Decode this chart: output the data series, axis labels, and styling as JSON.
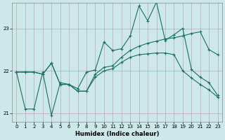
{
  "xlabel": "Humidex (Indice chaleur)",
  "bg_color": "#cce8e8",
  "line_color": "#1a7060",
  "grid_color": "#b8a8b8",
  "xlim": [
    -0.5,
    23.5
  ],
  "ylim": [
    20.8,
    23.6
  ],
  "yticks": [
    21,
    22,
    23
  ],
  "xticks": [
    0,
    1,
    2,
    3,
    4,
    5,
    6,
    7,
    8,
    9,
    10,
    11,
    12,
    13,
    14,
    15,
    16,
    17,
    18,
    19,
    20,
    21,
    22,
    23
  ],
  "line_spiky_x": [
    0,
    1,
    2,
    3,
    4,
    5,
    6,
    7,
    8,
    9,
    10,
    11,
    12,
    13,
    14,
    15,
    16,
    17,
    18,
    19,
    20,
    21,
    22,
    23
  ],
  "line_spiky_y": [
    21.97,
    21.1,
    21.1,
    21.97,
    20.95,
    21.72,
    21.68,
    21.58,
    21.97,
    22.02,
    22.68,
    22.48,
    22.52,
    22.82,
    23.53,
    23.18,
    23.62,
    22.72,
    22.85,
    23.0,
    22.03,
    21.85,
    21.72,
    21.42
  ],
  "line_rising_x": [
    0,
    1,
    2,
    3,
    4,
    5,
    6,
    7,
    8,
    9,
    10,
    11,
    12,
    13,
    14,
    15,
    16,
    17,
    18,
    19,
    20,
    21,
    22,
    23
  ],
  "line_rising_y": [
    21.97,
    21.97,
    21.97,
    21.92,
    22.18,
    21.68,
    21.68,
    21.52,
    21.52,
    21.92,
    22.08,
    22.12,
    22.32,
    22.48,
    22.58,
    22.65,
    22.7,
    22.75,
    22.78,
    22.82,
    22.88,
    22.92,
    22.5,
    22.38
  ],
  "line_falling_x": [
    0,
    1,
    2,
    3,
    4,
    5,
    6,
    7,
    8,
    9,
    10,
    11,
    12,
    13,
    14,
    15,
    16,
    17,
    18,
    19,
    20,
    21,
    22,
    23
  ],
  "line_falling_y": [
    21.97,
    21.97,
    21.97,
    21.92,
    22.18,
    21.68,
    21.68,
    21.52,
    21.52,
    21.85,
    22.0,
    22.05,
    22.2,
    22.32,
    22.38,
    22.4,
    22.42,
    22.42,
    22.38,
    22.0,
    21.83,
    21.68,
    21.55,
    21.38
  ],
  "marker": "+"
}
